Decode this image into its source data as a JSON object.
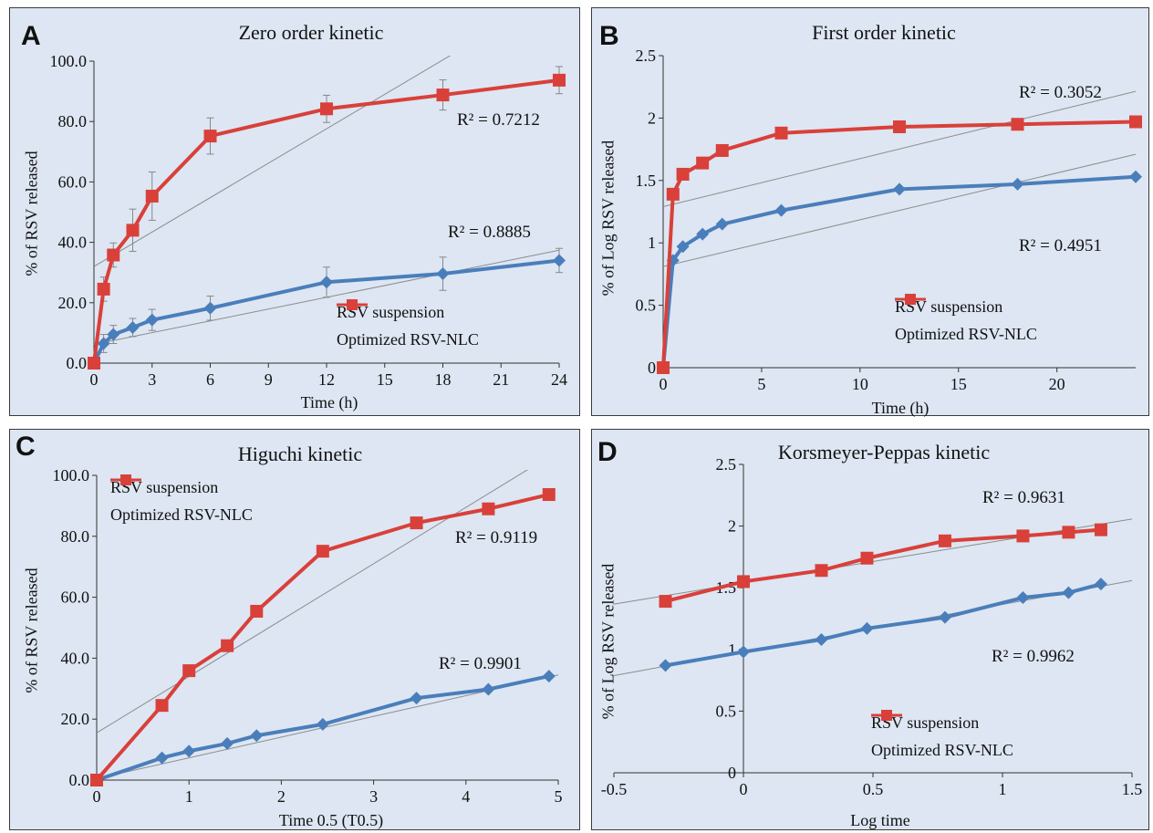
{
  "colors": {
    "suspension": "#4a7ebb",
    "nlc": "#d9403a",
    "trend": "#8c8c8c",
    "panel_bg": "#dde6f2"
  },
  "chart_data": [
    {
      "id": "A",
      "letter": "A",
      "type": "line",
      "title": "Zero order kinetic",
      "xlabel": "Time (h)",
      "ylabel": "% of RSV released",
      "xlim": [
        0,
        24
      ],
      "ylim": [
        0,
        100
      ],
      "xticks": [
        "0",
        "3",
        "6",
        "9",
        "12",
        "15",
        "18",
        "21",
        "24"
      ],
      "yticks": [
        "0.0",
        "20.0",
        "40.0",
        "60.0",
        "80.0",
        "100.0"
      ],
      "series": [
        {
          "name": "RSV suspension",
          "color": "#4a7ebb",
          "marker": "diamond",
          "x": [
            0,
            0.5,
            1,
            2,
            3,
            6,
            12,
            18,
            24
          ],
          "y": [
            0,
            6.5,
            9.5,
            11.8,
            14.3,
            18.2,
            26.8,
            29.6,
            34.0
          ],
          "err": [
            0,
            3,
            3,
            3,
            3.5,
            4,
            5,
            5.5,
            4
          ]
        },
        {
          "name": "Optimized RSV-NLC",
          "color": "#d9403a",
          "marker": "square",
          "x": [
            0,
            0.5,
            1,
            2,
            3,
            6,
            12,
            18,
            24
          ],
          "y": [
            0,
            24.5,
            35.8,
            44.0,
            55.3,
            75.2,
            84.2,
            88.8,
            93.7
          ],
          "err": [
            0,
            4,
            4,
            7,
            8,
            6,
            4.5,
            5,
            4.5
          ]
        }
      ],
      "trendlines": [
        {
          "series": "RSV suspension",
          "slope": 1.3,
          "intercept": 6.2
        },
        {
          "series": "Optimized RSV-NLC",
          "slope": 3.8,
          "intercept": 32.0
        }
      ],
      "annotations": [
        "R² = 0.7212",
        "R² = 0.8885"
      ],
      "legend": [
        "RSV suspension",
        "Optimized RSV-NLC"
      ],
      "legend_position": "bottom-right"
    },
    {
      "id": "B",
      "letter": "B",
      "type": "line",
      "title": "First order kinetic",
      "xlabel": "Time (h)",
      "ylabel": "% of Log RSV released",
      "xlim": [
        0,
        24
      ],
      "ylim": [
        0,
        2.5
      ],
      "xticks": [
        "0",
        "5",
        "10",
        "15",
        "20"
      ],
      "yticks": [
        "0",
        "0.5",
        "1",
        "1.5",
        "2",
        "2.5"
      ],
      "series": [
        {
          "name": "RSV suspension",
          "color": "#4a7ebb",
          "marker": "diamond",
          "x": [
            0,
            0.5,
            1,
            2,
            3,
            6,
            12,
            18,
            24
          ],
          "y": [
            0,
            0.86,
            0.97,
            1.07,
            1.15,
            1.26,
            1.43,
            1.47,
            1.53
          ]
        },
        {
          "name": "Optimized RSV-NLC",
          "color": "#d9403a",
          "marker": "square",
          "x": [
            0,
            0.5,
            1,
            2,
            3,
            6,
            12,
            18,
            24
          ],
          "y": [
            0,
            1.39,
            1.55,
            1.64,
            1.74,
            1.88,
            1.93,
            1.95,
            1.97
          ]
        }
      ],
      "trendlines": [
        {
          "series": "RSV suspension",
          "slope": 0.0375,
          "intercept": 0.81
        },
        {
          "series": "Optimized RSV-NLC",
          "slope": 0.0385,
          "intercept": 1.29
        }
      ],
      "annotations": [
        "R² = 0.3052",
        "R² = 0.4951"
      ],
      "legend": [
        "RSV suspension",
        "Optimized RSV-NLC"
      ],
      "legend_position": "bottom-right"
    },
    {
      "id": "C",
      "letter": "C",
      "type": "line",
      "title": "Higuchi kinetic",
      "xlabel": "Time 0.5 (T0.5)",
      "ylabel": "% of RSV released",
      "xlim": [
        0,
        5
      ],
      "ylim": [
        0,
        100
      ],
      "xticks": [
        "0",
        "1",
        "2",
        "3",
        "4",
        "5"
      ],
      "yticks": [
        "0.0",
        "20.0",
        "40.0",
        "60.0",
        "80.0",
        "100.0"
      ],
      "series": [
        {
          "name": "RSV suspension",
          "color": "#4a7ebb",
          "marker": "diamond",
          "x": [
            0,
            0.707,
            1,
            1.414,
            1.732,
            2.449,
            3.464,
            4.243,
            4.899
          ],
          "y": [
            0,
            7.3,
            9.5,
            12.0,
            14.6,
            18.3,
            26.9,
            29.8,
            34.1
          ]
        },
        {
          "name": "Optimized RSV-NLC",
          "color": "#d9403a",
          "marker": "square",
          "x": [
            0,
            0.707,
            1,
            1.414,
            1.732,
            2.449,
            3.464,
            4.243,
            4.899
          ],
          "y": [
            0,
            24.5,
            35.9,
            44.1,
            55.4,
            75.1,
            84.4,
            89.0,
            93.7
          ]
        }
      ],
      "trendlines": [
        {
          "series": "RSV suspension",
          "slope": 6.8,
          "intercept": 0.5
        },
        {
          "series": "Optimized RSV-NLC",
          "slope": 18.5,
          "intercept": 15.5
        }
      ],
      "annotations": [
        "R² = 0.9119",
        "R² = 0.9901"
      ],
      "legend": [
        "RSV suspension",
        "Optimized RSV-NLC"
      ],
      "legend_position": "top-left"
    },
    {
      "id": "D",
      "letter": "D",
      "type": "line",
      "title": "Korsmeyer-Peppas kinetic",
      "xlabel": "Log time",
      "ylabel": "% of Log RSV released",
      "xlim": [
        -0.5,
        1.5
      ],
      "ylim": [
        0,
        2.5
      ],
      "xticks": [
        "-0.5",
        "0",
        "0.5",
        "1",
        "1.5"
      ],
      "yticks": [
        "0",
        "0.5",
        "1",
        "1.5",
        "2",
        "2.5"
      ],
      "series": [
        {
          "name": "RSV suspension",
          "color": "#4a7ebb",
          "marker": "diamond",
          "x": [
            -0.301,
            0,
            0.301,
            0.477,
            0.778,
            1.079,
            1.255,
            1.38
          ],
          "y": [
            0.87,
            0.98,
            1.08,
            1.17,
            1.26,
            1.42,
            1.46,
            1.53
          ]
        },
        {
          "name": "Optimized RSV-NLC",
          "color": "#d9403a",
          "marker": "square",
          "x": [
            -0.301,
            0,
            0.301,
            0.477,
            0.778,
            1.079,
            1.255,
            1.38
          ],
          "y": [
            1.39,
            1.55,
            1.64,
            1.74,
            1.88,
            1.92,
            1.95,
            1.97
          ]
        }
      ],
      "trendlines": [
        {
          "series": "RSV suspension",
          "slope": 0.385,
          "intercept": 0.98
        },
        {
          "series": "Optimized RSV-NLC",
          "slope": 0.345,
          "intercept": 1.54
        }
      ],
      "annotations": [
        "R² = 0.9631",
        "R² = 0.9962"
      ],
      "legend": [
        "RSV suspension",
        "Optimized RSV-NLC"
      ],
      "legend_position": "bottom-right"
    }
  ]
}
